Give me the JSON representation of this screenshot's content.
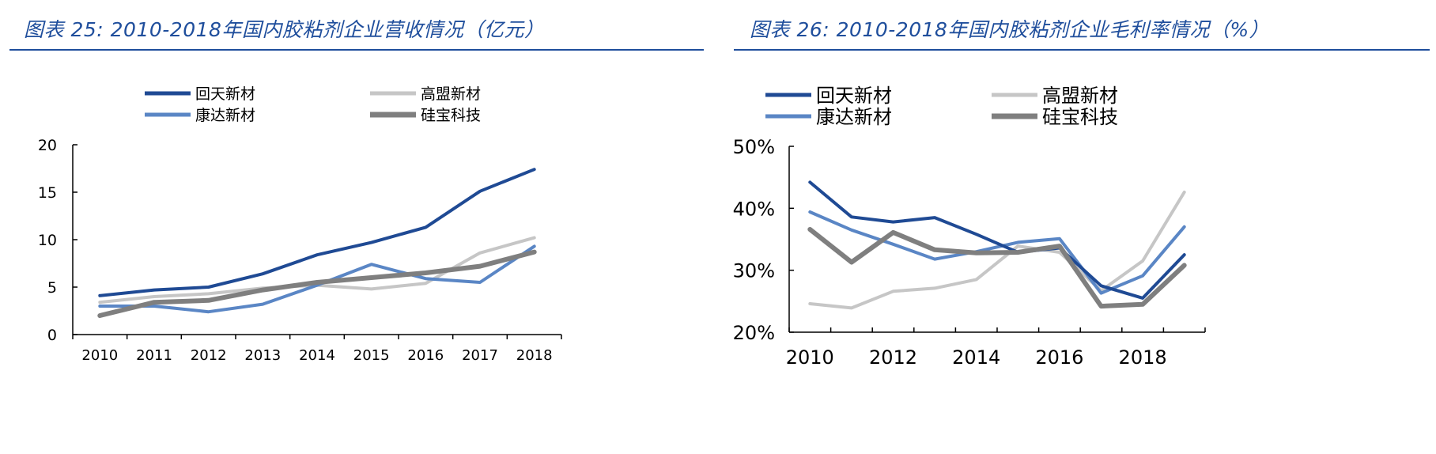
{
  "chart_data": [
    {
      "type": "line",
      "figure_label": "图表 25:",
      "title": "2010-2018年国内胶粘剂企业营收情况（亿元）",
      "xlabel": "",
      "ylabel": "",
      "categories": [
        "2010",
        "2011",
        "2012",
        "2013",
        "2014",
        "2015",
        "2016",
        "2017",
        "2018"
      ],
      "ylim": [
        0,
        20
      ],
      "yticks": [
        "0",
        "5",
        "10",
        "15",
        "20"
      ],
      "series": [
        {
          "name": "回天新材",
          "color": "#1f4a94",
          "width": 4,
          "values": [
            4.1,
            4.7,
            5.0,
            6.4,
            8.4,
            9.7,
            11.3,
            15.1,
            17.4
          ]
        },
        {
          "name": "高盟新材",
          "color": "#c6c6c6",
          "width": 4,
          "values": [
            3.4,
            4.0,
            4.3,
            4.9,
            5.2,
            4.8,
            5.4,
            8.6,
            10.2
          ]
        },
        {
          "name": "康达新材",
          "color": "#5a86c5",
          "width": 4,
          "values": [
            3.0,
            3.0,
            2.4,
            3.2,
            5.2,
            7.4,
            5.9,
            5.5,
            9.3
          ]
        },
        {
          "name": "硅宝科技",
          "color": "#7f7f7f",
          "width": 6,
          "values": [
            2.0,
            3.4,
            3.6,
            4.7,
            5.5,
            6.0,
            6.5,
            7.2,
            8.7
          ]
        }
      ],
      "legend": "top, two columns"
    },
    {
      "type": "line",
      "figure_label": "图表 26:",
      "title": "2010-2018年国内胶粘剂企业毛利率情况（%）",
      "xlabel": "",
      "ylabel": "",
      "x": [
        2010,
        2011,
        2012,
        2013,
        2014,
        2015,
        2016,
        2017,
        2018,
        2019
      ],
      "xticks": [
        "2010",
        "2012",
        "2014",
        "2016",
        "2018"
      ],
      "ylim": [
        20,
        50
      ],
      "yticks": [
        "20%",
        "30%",
        "40%",
        "50%"
      ],
      "series": [
        {
          "name": "回天新材",
          "color": "#1f4a94",
          "width": 4,
          "values": [
            44.2,
            38.6,
            37.8,
            38.5,
            35.8,
            32.9,
            33.6,
            27.5,
            25.5,
            32.5
          ]
        },
        {
          "name": "高盟新材",
          "color": "#c6c6c6",
          "width": 4,
          "values": [
            24.6,
            23.9,
            26.6,
            27.1,
            28.5,
            33.9,
            32.9,
            26.7,
            31.5,
            42.6
          ]
        },
        {
          "name": "康达新材",
          "color": "#5a86c5",
          "width": 4,
          "values": [
            39.4,
            36.5,
            34.2,
            31.8,
            33.0,
            34.5,
            35.1,
            26.3,
            29.1,
            37.0
          ]
        },
        {
          "name": "硅宝科技",
          "color": "#7f7f7f",
          "width": 6,
          "values": [
            36.6,
            31.3,
            36.1,
            33.3,
            32.8,
            32.9,
            33.9,
            24.2,
            24.5,
            30.8
          ]
        }
      ],
      "legend": "top, two columns"
    }
  ]
}
